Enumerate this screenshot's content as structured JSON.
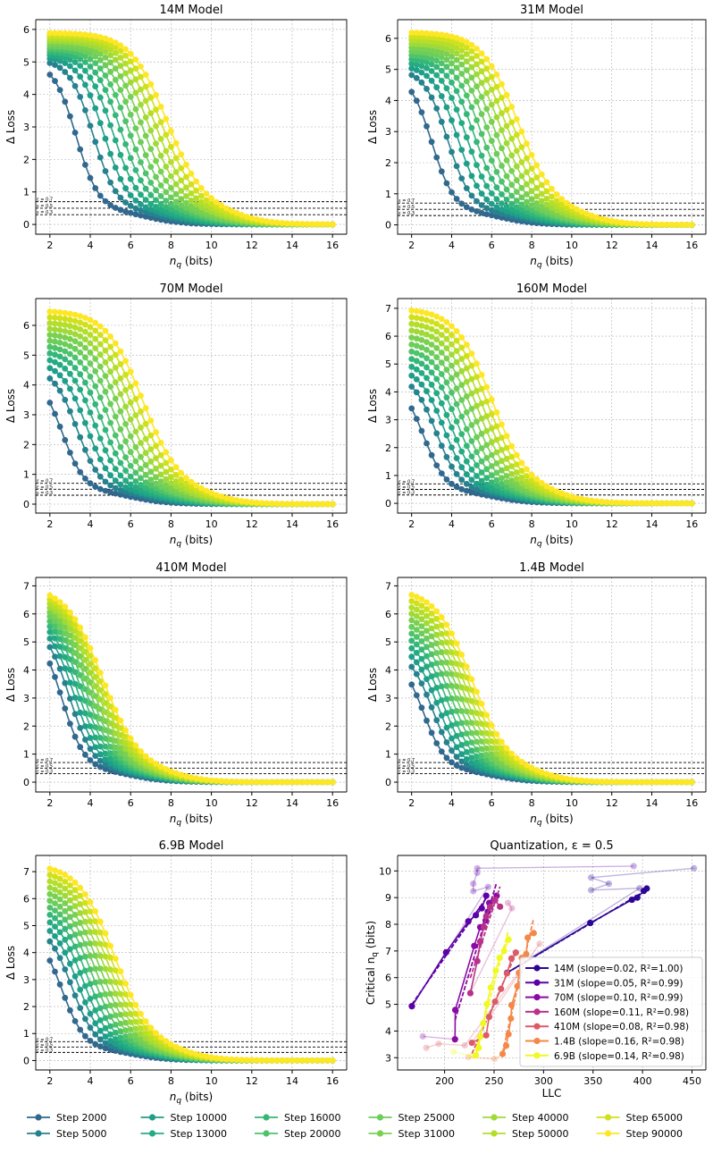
{
  "chart_data": [
    {
      "type": "line",
      "panels": [
        {
          "title": "14M Model",
          "ylim": [
            -0.3,
            6.3
          ],
          "curve_model": {
            "center_first": 3.3,
            "center_last": 7.8,
            "amp_first": 5.0,
            "amp_last": 5.9
          }
        },
        {
          "title": "31M Model",
          "ylim": [
            -0.3,
            6.6
          ],
          "curve_model": {
            "center_first": 3.0,
            "center_last": 7.3,
            "amp_first": 4.9,
            "amp_last": 6.2
          }
        },
        {
          "title": "70M Model",
          "ylim": [
            -0.3,
            6.9
          ],
          "curve_model": {
            "center_first": 2.6,
            "center_last": 6.6,
            "amp_first": 4.4,
            "amp_last": 6.5
          }
        },
        {
          "title": "160M Model",
          "ylim": [
            -0.35,
            7.35
          ],
          "curve_model": {
            "center_first": 2.6,
            "center_last": 6.0,
            "amp_first": 4.4,
            "amp_last": 7.0
          }
        },
        {
          "title": "410M Model",
          "ylim": [
            -0.35,
            7.3
          ],
          "curve_model": {
            "center_first": 2.6,
            "center_last": 4.6,
            "amp_first": 5.5,
            "amp_last": 7.0
          }
        },
        {
          "title": "1.4B Model",
          "ylim": [
            -0.35,
            7.3
          ],
          "curve_model": {
            "center_first": 2.6,
            "center_last": 5.0,
            "amp_first": 4.5,
            "amp_last": 6.9
          }
        },
        {
          "title": "6.9B Model",
          "ylim": [
            -0.35,
            7.6
          ],
          "curve_model": {
            "center_first": 2.6,
            "center_last": 5.2,
            "amp_first": 4.8,
            "amp_last": 7.3
          }
        }
      ],
      "xlabel": "n_q (bits)",
      "xlabel_main": "n",
      "xlabel_sub": "q",
      "xlabel_rest": " (bits)",
      "ylabel": "Δ Loss",
      "xlim": [
        1.3,
        16.7
      ],
      "xticks": [
        2,
        4,
        6,
        8,
        10,
        12,
        14,
        16
      ],
      "x_grid": {
        "start": 2,
        "end": 16,
        "step": 0.25
      },
      "thresholds": [
        {
          "value": 0.7,
          "label": "ε = 0.7"
        },
        {
          "value": 0.5,
          "label": "ε = 0.5"
        },
        {
          "value": 0.3,
          "label": "ε = 0.3"
        }
      ],
      "grid": true,
      "legend_position": "bottom",
      "series": [
        {
          "name": "Step 2000",
          "color": "#31688e"
        },
        {
          "name": "Step 5000",
          "color": "#26828e"
        },
        {
          "name": "Step 10000",
          "color": "#1f9e89"
        },
        {
          "name": "Step 13000",
          "color": "#25ab82"
        },
        {
          "name": "Step 16000",
          "color": "#35b779"
        },
        {
          "name": "Step 20000",
          "color": "#4ec36b"
        },
        {
          "name": "Step 25000",
          "color": "#6ccd5a"
        },
        {
          "name": "Step 31000",
          "color": "#7ad151"
        },
        {
          "name": "Step 40000",
          "color": "#a0da39"
        },
        {
          "name": "Step 50000",
          "color": "#b5de2b"
        },
        {
          "name": "Step 65000",
          "color": "#d0e11c"
        },
        {
          "name": "Step 90000",
          "color": "#fde725"
        }
      ]
    },
    {
      "type": "scatter",
      "title": "Quantization, ε = 0.5",
      "xlabel": "LLC",
      "ylabel": "Critical n_q (bits)",
      "ylabel_main": "Critical n",
      "ylabel_sub": "q",
      "ylabel_rest": " (bits)",
      "xlim": [
        152.5,
        464
      ],
      "ylim": [
        2.54,
        10.58
      ],
      "xticks": [
        200,
        250,
        300,
        350,
        400,
        450
      ],
      "yticks": [
        3,
        4,
        5,
        6,
        7,
        8,
        9,
        10
      ],
      "grid": true,
      "legend_position": "lower-right",
      "series": [
        {
          "name": "14M (slope=0.02, R²=1.00)",
          "color": "#2d0594",
          "points": [
            [
              263.1,
              6.18
            ],
            [
              347.2,
              8.05
            ],
            [
              389.3,
              8.92
            ],
            [
              394.7,
              9.0
            ],
            [
              401.3,
              9.25
            ],
            [
              404.3,
              9.34
            ]
          ],
          "excluded": [
            [
              452,
              10.1
            ],
            [
              348,
              9.75
            ],
            [
              366,
              9.52
            ],
            [
              348,
              9.28
            ],
            [
              397,
              9.35
            ]
          ]
        },
        {
          "name": "31M (slope=0.05, R²=0.99)",
          "color": "#5c01a6",
          "points": [
            [
              166.9,
              4.93
            ],
            [
              201.5,
              6.95
            ],
            [
              224.0,
              8.11
            ],
            [
              231.6,
              8.34
            ],
            [
              237.6,
              8.6
            ],
            [
              242.1,
              9.07
            ]
          ],
          "excluded": [
            [
              391,
              10.18
            ],
            [
              233,
              10.1
            ],
            [
              233,
              9.93
            ],
            [
              229,
              9.52
            ],
            [
              229,
              9.24
            ],
            [
              244,
              9.4
            ]
          ]
        },
        {
          "name": "70M (slope=0.10, R²=0.99)",
          "color": "#8b0aa5",
          "points": [
            [
              210.5,
              3.69
            ],
            [
              210.8,
              4.79
            ],
            [
              230.0,
              7.19
            ],
            [
              236.0,
              7.89
            ],
            [
              241.5,
              8.14
            ],
            [
              243.6,
              8.47
            ],
            [
              245.1,
              8.8
            ],
            [
              252.6,
              9.07
            ]
          ],
          "excluded": [
            [
              178,
              3.8
            ]
          ]
        },
        {
          "name": "160M (slope=0.11, R²=0.98)",
          "color": "#b83289",
          "points": [
            [
              226,
              5.42
            ],
            [
              233,
              6.62
            ],
            [
              236,
              7.35
            ],
            [
              239.7,
              7.9
            ],
            [
              242,
              8.3
            ],
            [
              246,
              8.65
            ],
            [
              251,
              8.9
            ],
            [
              256,
              8.66
            ]
          ],
          "excluded": [
            [
              264,
              8.8
            ],
            [
              268,
              8.6
            ]
          ]
        },
        {
          "name": "410M (slope=0.08, R²=0.98)",
          "color": "#db5c68",
          "points": [
            [
              227.6,
              3.56
            ],
            [
              242,
              3.84
            ],
            [
              245,
              4.53
            ],
            [
              251,
              5.1
            ],
            [
              257,
              5.58
            ],
            [
              263,
              6.16
            ],
            [
              267.6,
              6.72
            ],
            [
              272,
              6.94
            ]
          ],
          "excluded": [
            [
              181.5,
              3.37
            ],
            [
              194,
              3.52
            ],
            [
              220.4,
              3.46
            ],
            [
              296,
              7.27
            ]
          ]
        },
        {
          "name": "1.4B (slope=0.16, R²=0.98)",
          "color": "#f48849",
          "points": [
            [
              258.6,
              3.14
            ],
            [
              262.2,
              3.45
            ],
            [
              264.6,
              3.88
            ],
            [
              267.0,
              4.47
            ],
            [
              267.6,
              4.97
            ],
            [
              273.6,
              5.68
            ],
            [
              275.1,
              6.18
            ],
            [
              278,
              6.74
            ],
            [
              282.5,
              6.88
            ],
            [
              284,
              7.5
            ],
            [
              290,
              7.67
            ]
          ],
          "excluded": [
            [
              224,
              3.02
            ],
            [
              250.5,
              2.95
            ]
          ]
        },
        {
          "name": "6.9B (slope=0.14, R²=0.98)",
          "color": "#f0f921",
          "points": [
            [
              231.5,
              3.09
            ],
            [
              234.5,
              3.37
            ],
            [
              236,
              3.78
            ],
            [
              239,
              4.29
            ],
            [
              242.7,
              5.01
            ],
            [
              246.6,
              5.63
            ],
            [
              251.7,
              6.26
            ],
            [
              255.6,
              6.74
            ],
            [
              260.1,
              7.0
            ],
            [
              264.6,
              7.43
            ]
          ],
          "excluded": [
            [
              209,
              3.22
            ],
            [
              227,
              3.06
            ]
          ]
        }
      ]
    }
  ]
}
